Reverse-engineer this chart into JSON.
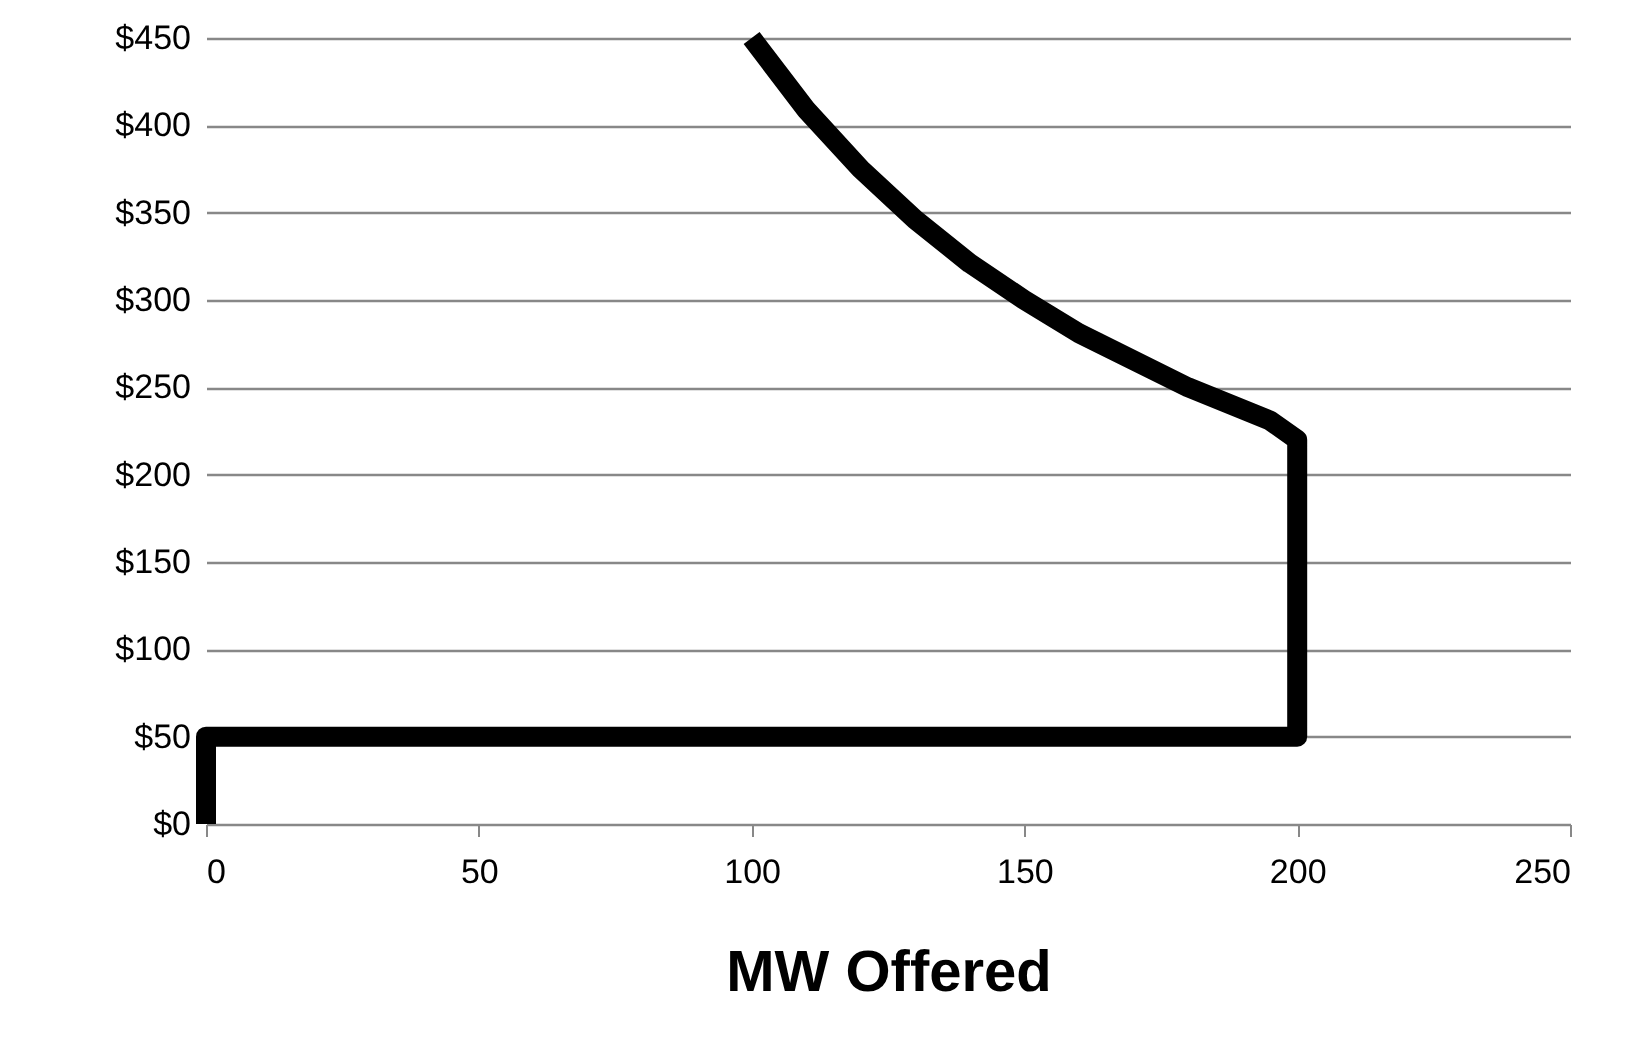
{
  "chart_data": {
    "type": "line",
    "xlabel": "MW Offered",
    "series": [
      {
        "color": "#000000",
        "x": [
          0,
          0,
          200,
          200,
          195,
          180,
          160,
          150,
          140,
          130,
          120,
          110,
          100
        ],
        "values": [
          0,
          50,
          50,
          220,
          231,
          250,
          281,
          300,
          321,
          346,
          375,
          409,
          450
        ]
      }
    ],
    "xlim": [
      0,
      250
    ],
    "xticks": [
      0,
      50,
      100,
      150,
      200,
      250
    ],
    "ylim": [
      0,
      450
    ],
    "yticks": [
      {
        "value": 0,
        "label": "$0"
      },
      {
        "value": 50,
        "label": "$50"
      },
      {
        "value": 100,
        "label": "$100"
      },
      {
        "value": 150,
        "label": "$150"
      },
      {
        "value": 200,
        "label": "$200"
      },
      {
        "value": 250,
        "label": "$250"
      },
      {
        "value": 300,
        "label": "$300"
      },
      {
        "value": 350,
        "label": "$350"
      },
      {
        "value": 400,
        "label": "$400"
      },
      {
        "value": 450,
        "label": "$450"
      }
    ],
    "grid": "y",
    "marker": "none",
    "line_style": "solid"
  }
}
